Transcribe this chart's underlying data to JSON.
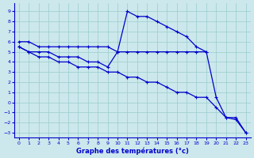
{
  "title": "Graphe des températures (°c)",
  "background_color": "#cce8ec",
  "grid_color": "#99cccc",
  "line_color": "#0000cc",
  "ylim": [
    -3.5,
    9.8
  ],
  "yticks": [
    -3,
    -2,
    -1,
    0,
    1,
    2,
    3,
    4,
    5,
    6,
    7,
    8,
    9
  ],
  "xlim": [
    -0.5,
    23.5
  ],
  "xticks": [
    0,
    1,
    2,
    3,
    4,
    5,
    6,
    7,
    8,
    9,
    10,
    11,
    12,
    13,
    14,
    15,
    16,
    17,
    18,
    19,
    20,
    21,
    22,
    23
  ],
  "curve1_x": [
    0,
    1,
    2,
    3,
    4,
    5,
    6,
    7,
    8,
    9,
    10,
    11,
    12,
    13,
    14,
    15,
    16,
    17,
    18,
    19
  ],
  "curve1_y": [
    6.0,
    6.0,
    5.5,
    5.5,
    5.5,
    5.5,
    5.5,
    5.5,
    5.5,
    5.5,
    5.0,
    5.0,
    5.0,
    5.0,
    5.0,
    5.0,
    5.0,
    5.0,
    5.0,
    5.0
  ],
  "curve2_x": [
    0,
    1,
    2,
    3,
    4,
    5,
    6,
    7,
    8,
    9,
    10,
    11,
    12,
    13,
    14,
    15,
    16,
    17,
    18,
    19,
    20,
    21,
    22,
    23
  ],
  "curve2_y": [
    5.5,
    5.0,
    5.0,
    5.0,
    4.5,
    4.5,
    4.5,
    4.0,
    4.0,
    3.5,
    5.0,
    9.0,
    8.5,
    8.5,
    8.0,
    7.5,
    7.0,
    6.5,
    5.5,
    5.0,
    0.5,
    -1.5,
    -1.5,
    -3.0
  ],
  "curve3_x": [
    0,
    1,
    2,
    3,
    4,
    5,
    6,
    7,
    8,
    9,
    10,
    11,
    12,
    13,
    14,
    15,
    16,
    17,
    18,
    19,
    20,
    21,
    22,
    23
  ],
  "curve3_y": [
    5.5,
    5.0,
    4.5,
    4.5,
    4.0,
    4.0,
    3.5,
    3.5,
    3.5,
    3.0,
    3.0,
    2.5,
    2.5,
    2.0,
    2.0,
    1.5,
    1.0,
    1.0,
    0.5,
    0.5,
    -0.5,
    -1.5,
    -1.7,
    -3.0
  ]
}
